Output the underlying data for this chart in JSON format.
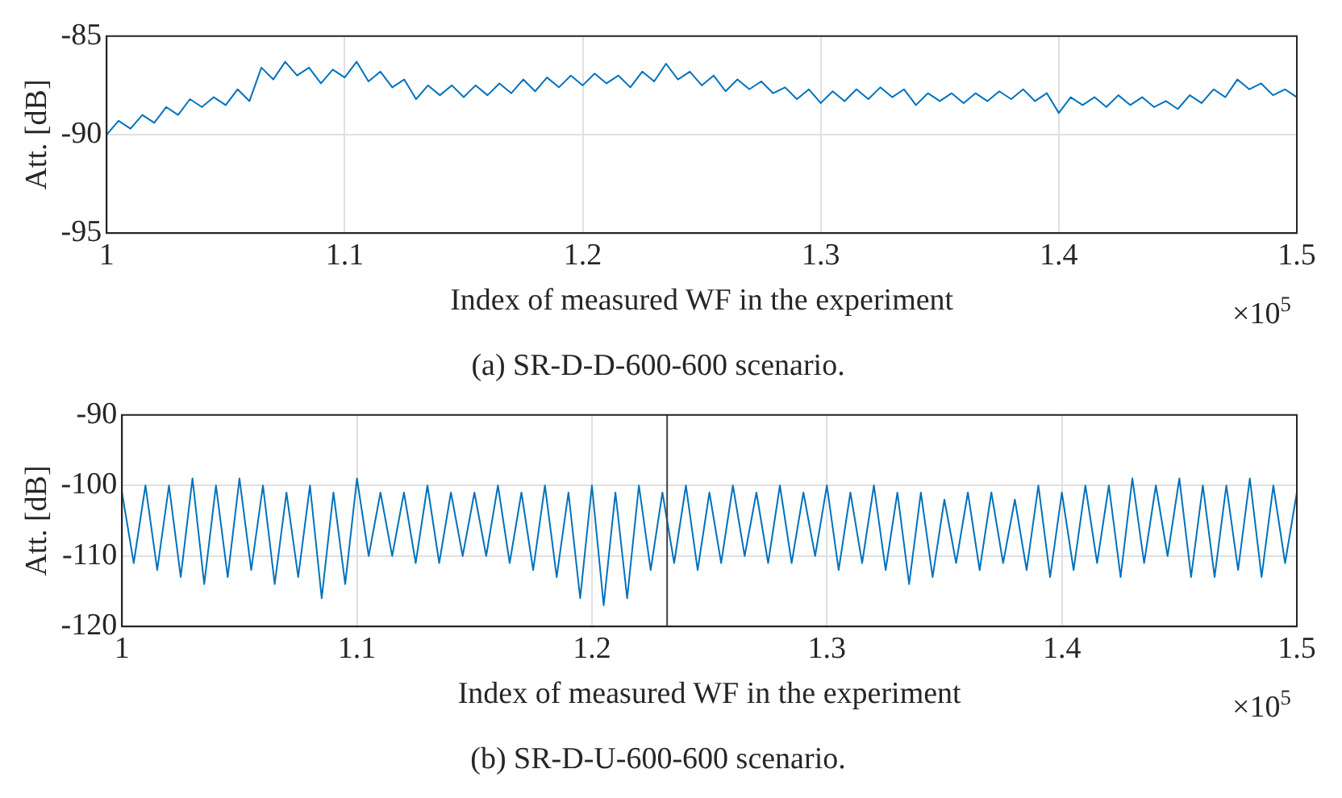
{
  "chart_data": [
    {
      "type": "line",
      "title": "(a) SR-D-D-600-600 scenario.",
      "xlabel": "Index of measured WF in the experiment",
      "ylabel": "Att. [dB]",
      "annotations": [
        "×10$^{5}$"
      ],
      "x": [
        1,
        1.005,
        1.01,
        1.015,
        1.02,
        1.025,
        1.03,
        1.035,
        1.04,
        1.045,
        1.05,
        1.055,
        1.06,
        1.065,
        1.07,
        1.075,
        1.08,
        1.085,
        1.09,
        1.095,
        1.1,
        1.105,
        1.11,
        1.115,
        1.12,
        1.125,
        1.13,
        1.135,
        1.14,
        1.145,
        1.15,
        1.155,
        1.16,
        1.165,
        1.17,
        1.175,
        1.18,
        1.185,
        1.19,
        1.195,
        1.2,
        1.205,
        1.21,
        1.215,
        1.22,
        1.225,
        1.23,
        1.235,
        1.24,
        1.245,
        1.25,
        1.255,
        1.26,
        1.265,
        1.27,
        1.275,
        1.28,
        1.285,
        1.29,
        1.295,
        1.3,
        1.305,
        1.31,
        1.315,
        1.32,
        1.325,
        1.33,
        1.335,
        1.34,
        1.345,
        1.35,
        1.355,
        1.36,
        1.365,
        1.37,
        1.375,
        1.38,
        1.385,
        1.39,
        1.395,
        1.4,
        1.405,
        1.41,
        1.415,
        1.42,
        1.425,
        1.43,
        1.435,
        1.44,
        1.445,
        1.45,
        1.455,
        1.46,
        1.465,
        1.47,
        1.475,
        1.48,
        1.485,
        1.49,
        1.495,
        1.5
      ],
      "series": [
        {
          "color": "#0072bd",
          "values": [
            -90.0,
            -89.3,
            -89.7,
            -89.0,
            -89.4,
            -88.6,
            -89.0,
            -88.2,
            -88.6,
            -88.1,
            -88.5,
            -87.7,
            -88.3,
            -86.6,
            -87.2,
            -86.3,
            -87.0,
            -86.6,
            -87.4,
            -86.7,
            -87.1,
            -86.3,
            -87.3,
            -86.8,
            -87.6,
            -87.2,
            -88.2,
            -87.5,
            -88.0,
            -87.5,
            -88.1,
            -87.5,
            -88.0,
            -87.4,
            -87.9,
            -87.2,
            -87.8,
            -87.1,
            -87.6,
            -87.0,
            -87.5,
            -86.9,
            -87.4,
            -87.0,
            -87.6,
            -86.8,
            -87.3,
            -86.4,
            -87.2,
            -86.8,
            -87.5,
            -87.0,
            -87.8,
            -87.2,
            -87.7,
            -87.3,
            -87.9,
            -87.6,
            -88.2,
            -87.7,
            -88.4,
            -87.8,
            -88.3,
            -87.7,
            -88.2,
            -87.6,
            -88.1,
            -87.7,
            -88.5,
            -87.9,
            -88.3,
            -87.9,
            -88.4,
            -87.9,
            -88.3,
            -87.8,
            -88.2,
            -87.7,
            -88.3,
            -87.9,
            -88.9,
            -88.1,
            -88.5,
            -88.1,
            -88.6,
            -88.0,
            -88.5,
            -88.1,
            -88.6,
            -88.3,
            -88.7,
            -88.0,
            -88.4,
            -87.7,
            -88.1,
            -87.2,
            -87.7,
            -87.4,
            -88.0,
            -87.7,
            -88.1
          ]
        }
      ],
      "xlim": [
        1,
        1.5
      ],
      "xticks": [
        1,
        1.1,
        1.2,
        1.3,
        1.4,
        1.5
      ],
      "ylim": [
        -95,
        -85
      ],
      "yticks": [
        -95,
        -90,
        -85
      ],
      "grid": true
    },
    {
      "type": "line",
      "title": "(b) SR-D-U-600-600 scenario.",
      "xlabel": "Index of measured WF in the experiment",
      "ylabel": "Att. [dB]",
      "annotations": [
        "×10$^{5}$"
      ],
      "x": [
        1,
        1.005,
        1.01,
        1.015,
        1.02,
        1.025,
        1.03,
        1.035,
        1.04,
        1.045,
        1.05,
        1.055,
        1.06,
        1.065,
        1.07,
        1.075,
        1.08,
        1.085,
        1.09,
        1.095,
        1.1,
        1.105,
        1.11,
        1.115,
        1.12,
        1.125,
        1.13,
        1.135,
        1.14,
        1.145,
        1.15,
        1.155,
        1.16,
        1.165,
        1.17,
        1.175,
        1.18,
        1.185,
        1.19,
        1.195,
        1.2,
        1.205,
        1.21,
        1.215,
        1.22,
        1.225,
        1.23,
        1.235,
        1.24,
        1.245,
        1.25,
        1.255,
        1.26,
        1.265,
        1.27,
        1.275,
        1.28,
        1.285,
        1.29,
        1.295,
        1.3,
        1.305,
        1.31,
        1.315,
        1.32,
        1.325,
        1.33,
        1.335,
        1.34,
        1.345,
        1.35,
        1.355,
        1.36,
        1.365,
        1.37,
        1.375,
        1.38,
        1.385,
        1.39,
        1.395,
        1.4,
        1.405,
        1.41,
        1.415,
        1.42,
        1.425,
        1.43,
        1.435,
        1.44,
        1.445,
        1.45,
        1.455,
        1.46,
        1.465,
        1.47,
        1.475,
        1.48,
        1.485,
        1.49,
        1.495,
        1.5
      ],
      "series": [
        {
          "color": "#0072bd",
          "values": [
            -101,
            -111,
            -100,
            -112,
            -100,
            -113,
            -99,
            -114,
            -100,
            -113,
            -99,
            -112,
            -100,
            -114,
            -101,
            -113,
            -100,
            -116,
            -101,
            -114,
            -99,
            -110,
            -101,
            -110,
            -101,
            -111,
            -100,
            -111,
            -101,
            -110,
            -101,
            -110,
            -100,
            -111,
            -101,
            -112,
            -100,
            -113,
            -101,
            -116,
            -100,
            -117,
            -101,
            -116,
            -100,
            -112,
            -101,
            -111,
            -100,
            -112,
            -101,
            -111,
            -100,
            -110,
            -101,
            -111,
            -100,
            -111,
            -101,
            -110,
            -100,
            -112,
            -101,
            -111,
            -100,
            -112,
            -101,
            -114,
            -101,
            -113,
            -102,
            -111,
            -101,
            -112,
            -101,
            -111,
            -102,
            -112,
            -100,
            -113,
            -101,
            -112,
            -100,
            -111,
            -100,
            -113,
            -99,
            -111,
            -100,
            -110,
            -99,
            -113,
            -100,
            -113,
            -100,
            -112,
            -99,
            -113,
            -100,
            -111,
            -101
          ]
        }
      ],
      "xlim": [
        1,
        1.5
      ],
      "xticks": [
        1,
        1.1,
        1.2,
        1.3,
        1.4,
        1.5
      ],
      "ylim": [
        -120,
        -90
      ],
      "yticks": [
        -120,
        -110,
        -100,
        -90
      ],
      "grid": true,
      "ref_lines": [
        {
          "axis": "x",
          "value": 1.232,
          "color": "#404040"
        }
      ]
    }
  ]
}
